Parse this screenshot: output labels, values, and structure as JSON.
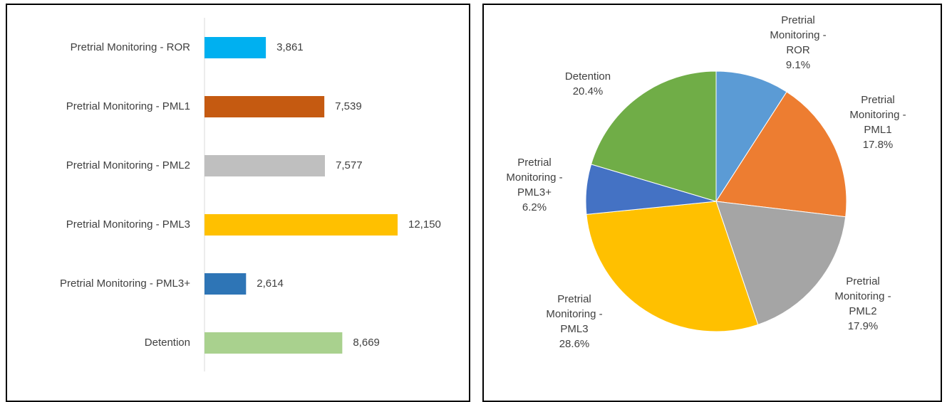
{
  "chart_data": [
    {
      "type": "barh",
      "categories": [
        "Pretrial Monitoring - ROR",
        "Pretrial Monitoring - PML1",
        "Pretrial Monitoring - PML2",
        "Pretrial Monitoring - PML3",
        "Pretrial Monitoring - PML3+",
        "Detention"
      ],
      "values": [
        3861,
        7539,
        7577,
        12150,
        2614,
        8669
      ],
      "value_labels": [
        "3,861",
        "7,539",
        "7,577",
        "12,150",
        "2,614",
        "8,669"
      ],
      "colors": [
        "#00b0f0",
        "#c55a11",
        "#bfbfbf",
        "#ffc000",
        "#2e75b6",
        "#a9d18e"
      ]
    },
    {
      "type": "pie",
      "categories": [
        "Pretrial Monitoring - ROR",
        "Pretrial Monitoring - PML1",
        "Pretrial Monitoring - PML2",
        "Pretrial Monitoring - PML3",
        "Pretrial Monitoring - PML3+",
        "Detention"
      ],
      "values": [
        9.1,
        17.8,
        17.9,
        28.6,
        6.2,
        20.4
      ],
      "value_labels": [
        "9.1%",
        "17.8%",
        "17.9%",
        "28.6%",
        "6.2%",
        "20.4%"
      ],
      "colors": [
        "#5b9bd5",
        "#ed7d31",
        "#a5a5a5",
        "#ffc000",
        "#4472c4",
        "#70ad47"
      ]
    }
  ]
}
